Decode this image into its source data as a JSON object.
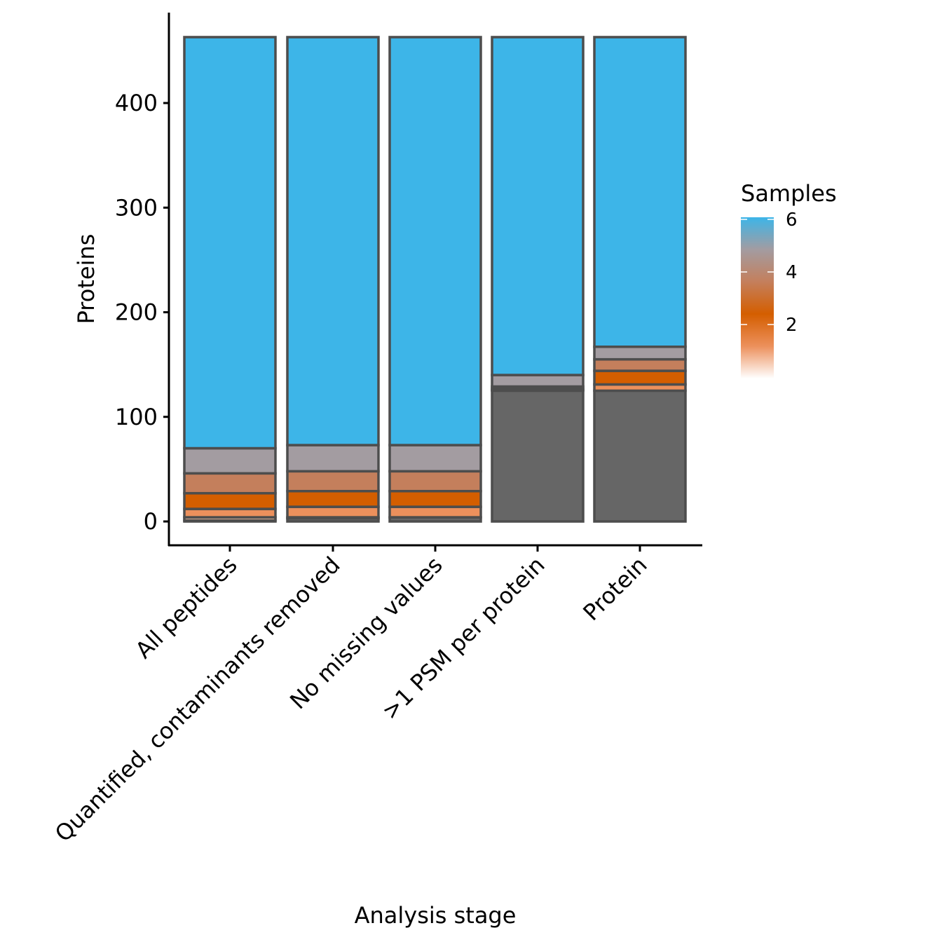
{
  "chart_data": {
    "type": "bar",
    "stacked": true,
    "xlabel": "Analysis stage",
    "ylabel": "Proteins",
    "ylim": [
      -23,
      485
    ],
    "yticks": [
      0,
      100,
      200,
      300,
      400
    ],
    "grid": false,
    "categories": [
      "All peptides",
      "Quantified, contaminants removed",
      "No missing values",
      ">1 PSM per protein",
      "Protein"
    ],
    "series": [
      {
        "key": "NA",
        "color": "#666666",
        "values": [
          1,
          3,
          4,
          125,
          125
        ]
      },
      {
        "key": "1",
        "color": "#f9c9a9",
        "values": [
          3,
          1,
          0,
          0,
          0
        ]
      },
      {
        "key": "2",
        "color": "#ec905c",
        "values": [
          8,
          10,
          10,
          1,
          6
        ]
      },
      {
        "key": "3",
        "color": "#d45e00",
        "values": [
          15,
          15,
          15,
          1,
          13
        ]
      },
      {
        "key": "4",
        "color": "#c47f5c",
        "values": [
          19,
          19,
          19,
          2,
          11
        ]
      },
      {
        "key": "5",
        "color": "#a39ca1",
        "values": [
          24,
          25,
          25,
          11,
          12
        ]
      },
      {
        "key": "6",
        "color": "#3db5e8",
        "values": [
          393,
          390,
          390,
          323,
          296
        ]
      }
    ],
    "legend": {
      "title": "Samples",
      "placement": "right",
      "type": "gradient",
      "ticks": [
        "2",
        "4",
        "6"
      ],
      "gradient_colors": [
        "#ffffff",
        "#ec905c",
        "#d45e00",
        "#c47f5c",
        "#a39ca1",
        "#3db5e8"
      ]
    }
  }
}
